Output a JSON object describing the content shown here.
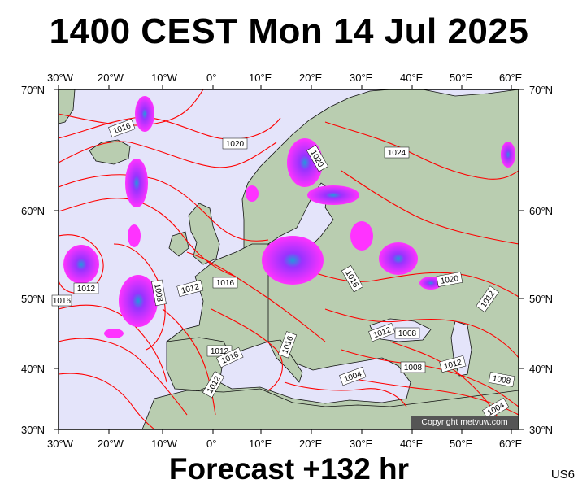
{
  "title": "1400 CEST Mon 14 Jul 2025",
  "footer": "Forecast +132 hr",
  "code": "US6",
  "copyright": "Copyright metvuw.com",
  "axes": {
    "lon_labels": [
      "30°W",
      "20°W",
      "10°W",
      "0°",
      "10°E",
      "20°E",
      "30°E",
      "40°E",
      "50°E",
      "60°E"
    ],
    "lat_labels": [
      "70°N",
      "60°N",
      "50°N",
      "40°N",
      "30°N"
    ]
  },
  "colors": {
    "ocean": "#e4e4fa",
    "land": "#b9cdb0",
    "isobar": "#ff0000",
    "coast": "#111111",
    "precip_light": "#ff33ff",
    "precip_mid": "#9933ff",
    "precip_heavy": "#2299dd"
  },
  "isobar_labels": [
    "1016",
    "1020",
    "1020",
    "1024",
    "1012",
    "1016",
    "1016",
    "1012",
    "1008",
    "1012",
    "1016",
    "1016",
    "1012",
    "1008",
    "1004",
    "1008",
    "1012",
    "1020",
    "1012",
    "1008",
    "1004",
    "1016",
    "1012"
  ]
}
